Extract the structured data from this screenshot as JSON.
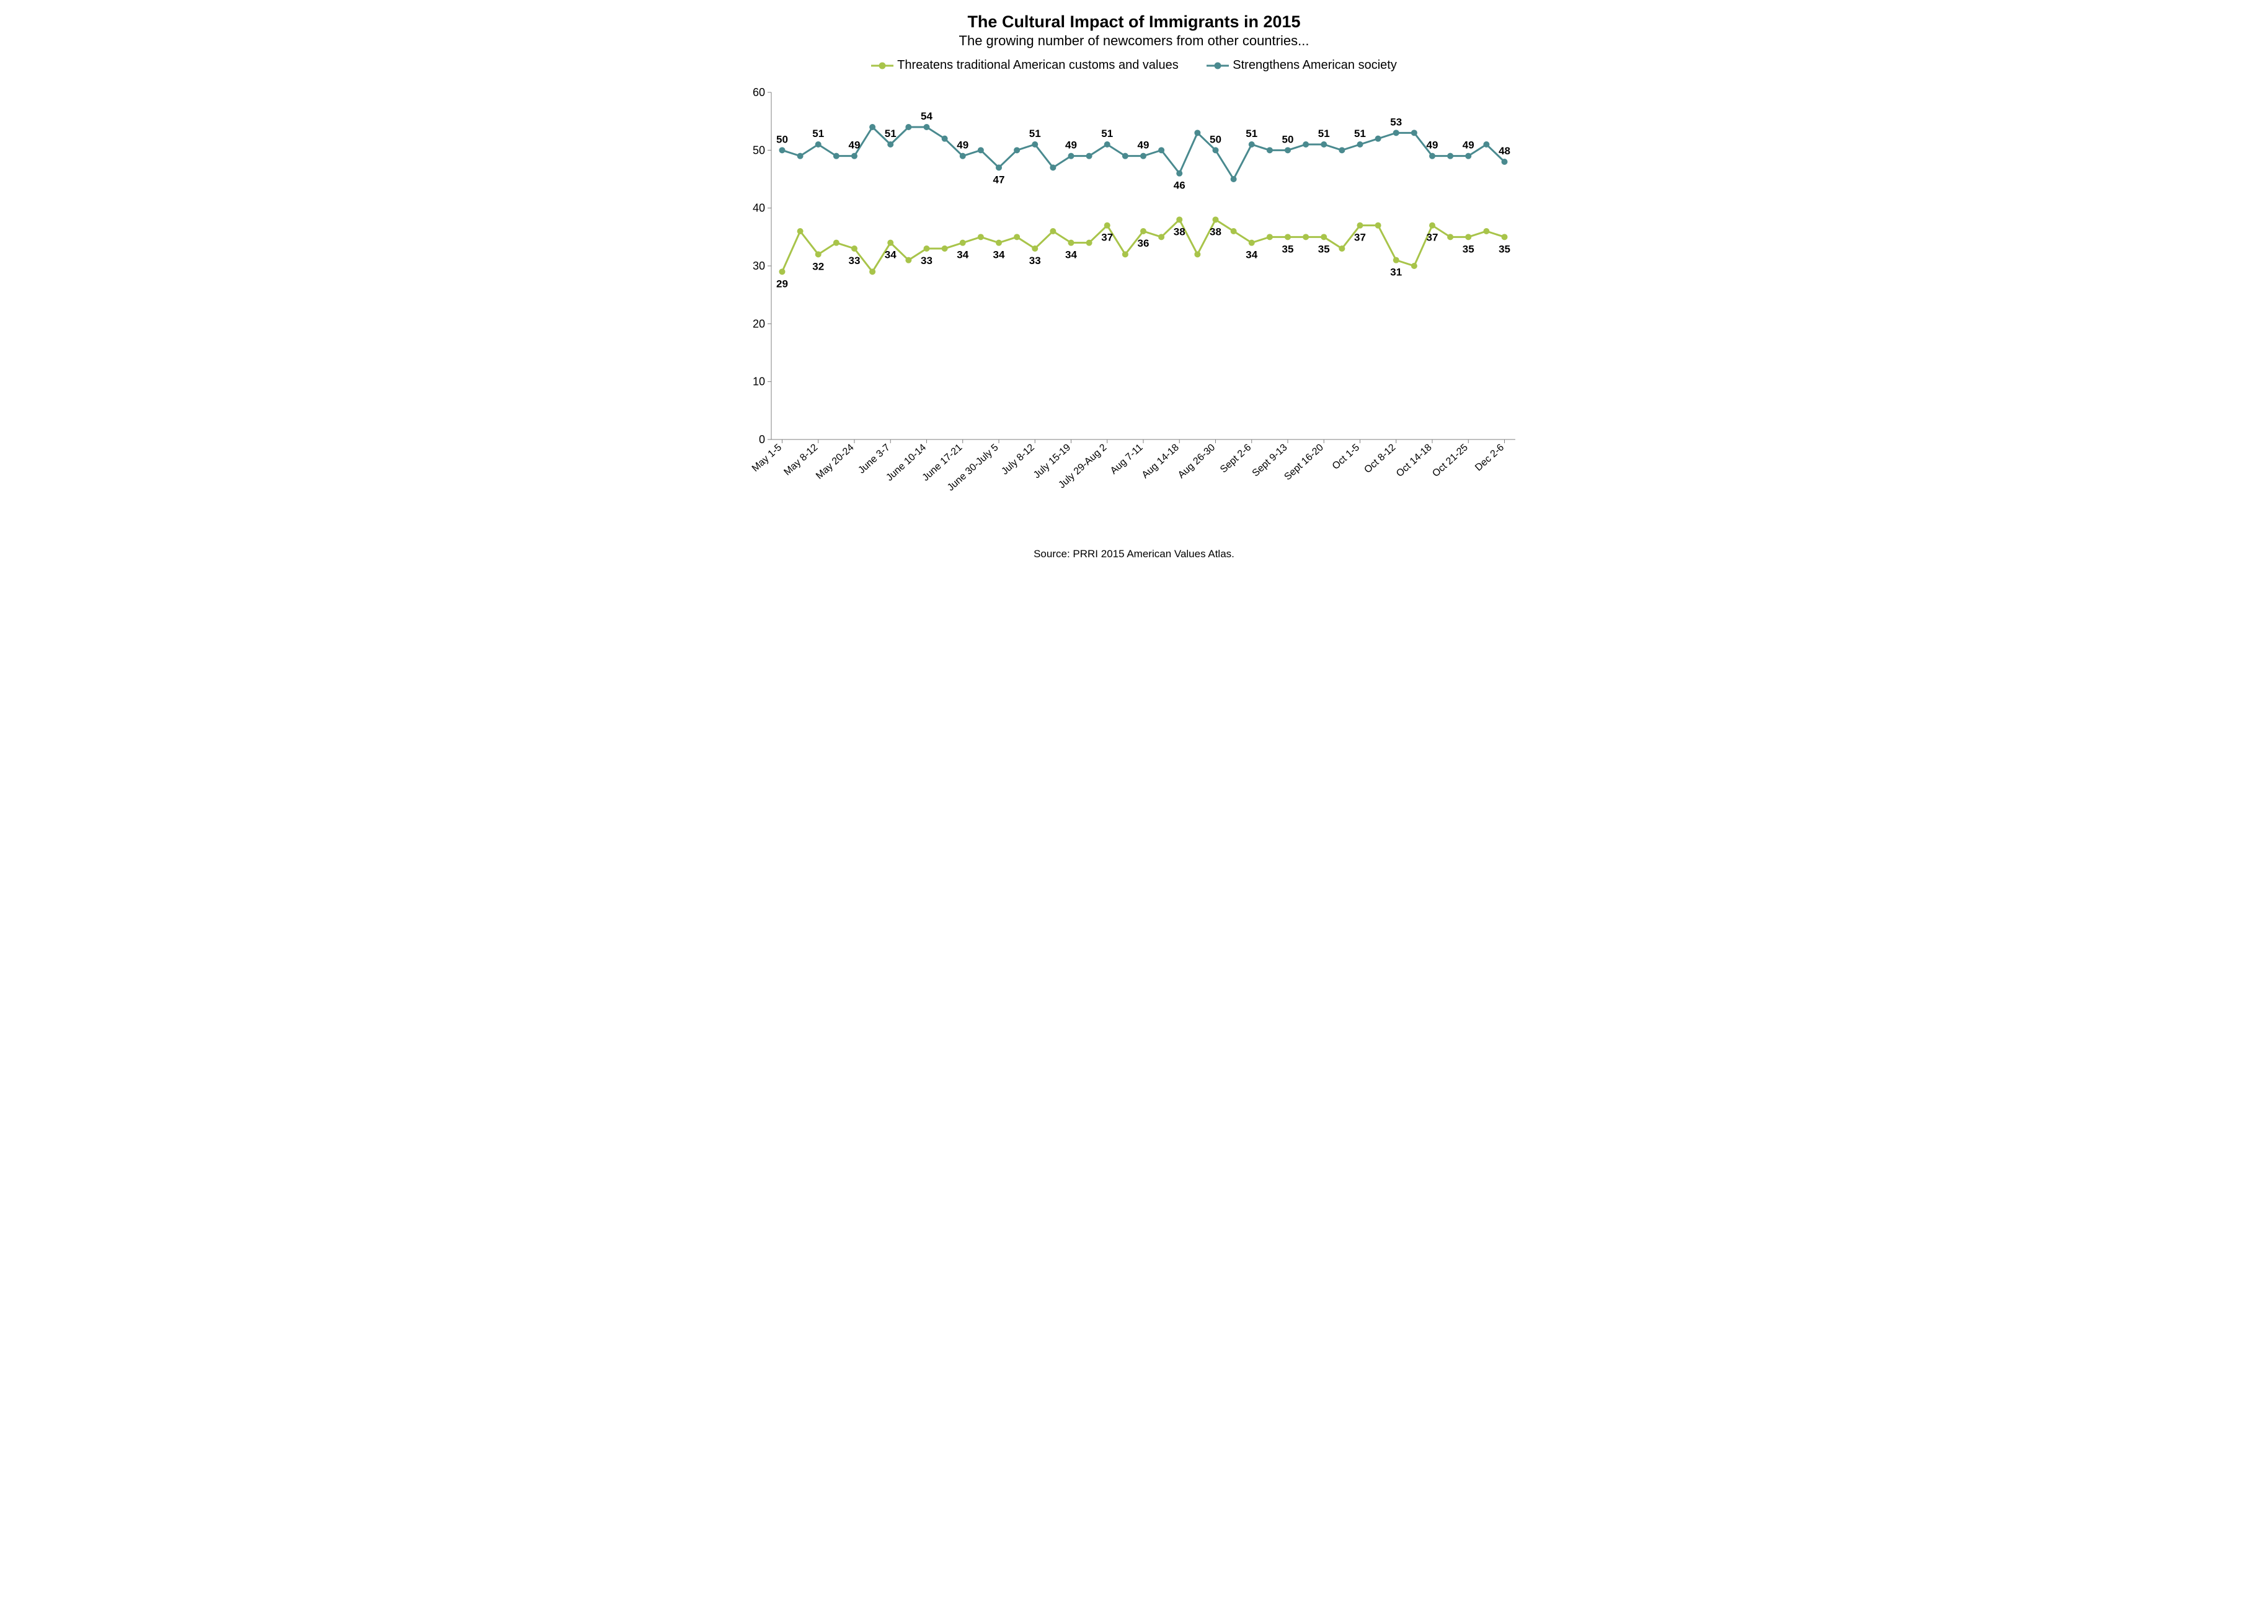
{
  "chart": {
    "type": "line",
    "title": "The Cultural Impact of Immigrants in 2015",
    "subtitle": "The growing number of newcomers from other countries...",
    "source": "Source: PRRI 2015 American Values Atlas.",
    "background_color": "#ffffff",
    "title_fontsize": 27,
    "subtitle_fontsize": 22,
    "legend_fontsize": 20,
    "label_fontsize": 17,
    "axis_fontsize": 18,
    "ylim": [
      0,
      60
    ],
    "ytick_step": 10,
    "line_width": 3,
    "marker_radius": 5,
    "categories": [
      "May 1-5",
      "",
      "May 8-12",
      "",
      "May 20-24",
      "",
      "June 3-7",
      "",
      "June 10-14",
      "",
      "June 17-21",
      "",
      "June 30-July 5",
      "",
      "July 8-12",
      "",
      "July 15-19",
      "",
      "July 29-Aug 2",
      "",
      "Aug 7-11",
      "",
      "Aug 14-18",
      "",
      "Aug 26-30",
      "",
      "Sept 2-6",
      "",
      "Sept 9-13",
      "",
      "Sept 16-20",
      "",
      "Oct 1-5",
      "",
      "Oct 8-12",
      "",
      "Oct 14-18",
      "",
      "Oct 21-25",
      "",
      "Dec 2-6"
    ],
    "x_tick_every": 2,
    "series": [
      {
        "name": "Threatens traditional American customs and values",
        "color": "#a8c44a",
        "values": [
          29,
          36,
          32,
          34,
          33,
          29,
          34,
          31,
          33,
          33,
          34,
          35,
          34,
          35,
          33,
          36,
          34,
          34,
          37,
          32,
          36,
          35,
          38,
          32,
          38,
          36,
          34,
          35,
          35,
          35,
          35,
          33,
          37,
          37,
          31,
          30,
          37,
          35,
          35,
          36,
          35
        ],
        "data_labels": [
          {
            "i": 0,
            "v": "29",
            "pos": "below"
          },
          {
            "i": 2,
            "v": "32",
            "pos": "below"
          },
          {
            "i": 4,
            "v": "33",
            "pos": "below"
          },
          {
            "i": 6,
            "v": "34",
            "pos": "below"
          },
          {
            "i": 8,
            "v": "33",
            "pos": "below"
          },
          {
            "i": 10,
            "v": "34",
            "pos": "below"
          },
          {
            "i": 12,
            "v": "34",
            "pos": "below"
          },
          {
            "i": 14,
            "v": "33",
            "pos": "below"
          },
          {
            "i": 16,
            "v": "34",
            "pos": "below"
          },
          {
            "i": 18,
            "v": "37",
            "pos": "below"
          },
          {
            "i": 20,
            "v": "36",
            "pos": "below"
          },
          {
            "i": 22,
            "v": "38",
            "pos": "below"
          },
          {
            "i": 24,
            "v": "38",
            "pos": "below"
          },
          {
            "i": 26,
            "v": "34",
            "pos": "below"
          },
          {
            "i": 28,
            "v": "35",
            "pos": "below"
          },
          {
            "i": 30,
            "v": "35",
            "pos": "below"
          },
          {
            "i": 32,
            "v": "37",
            "pos": "below"
          },
          {
            "i": 34,
            "v": "31",
            "pos": "below"
          },
          {
            "i": 36,
            "v": "37",
            "pos": "below"
          },
          {
            "i": 38,
            "v": "35",
            "pos": "below"
          },
          {
            "i": 40,
            "v": "35",
            "pos": "below"
          }
        ]
      },
      {
        "name": "Strengthens American society",
        "color": "#4a8a8f",
        "values": [
          50,
          49,
          51,
          49,
          49,
          54,
          51,
          54,
          54,
          52,
          49,
          50,
          47,
          50,
          51,
          47,
          49,
          49,
          51,
          49,
          49,
          50,
          46,
          53,
          50,
          45,
          51,
          50,
          50,
          51,
          51,
          50,
          51,
          52,
          53,
          53,
          49,
          49,
          49,
          51,
          48
        ],
        "data_labels": [
          {
            "i": 0,
            "v": "50",
            "pos": "above"
          },
          {
            "i": 2,
            "v": "51",
            "pos": "above"
          },
          {
            "i": 4,
            "v": "49",
            "pos": "above"
          },
          {
            "i": 6,
            "v": "51",
            "pos": "above"
          },
          {
            "i": 8,
            "v": "54",
            "pos": "above"
          },
          {
            "i": 10,
            "v": "49",
            "pos": "above"
          },
          {
            "i": 12,
            "v": "47",
            "pos": "below"
          },
          {
            "i": 14,
            "v": "51",
            "pos": "above"
          },
          {
            "i": 16,
            "v": "49",
            "pos": "above"
          },
          {
            "i": 18,
            "v": "51",
            "pos": "above"
          },
          {
            "i": 20,
            "v": "49",
            "pos": "above"
          },
          {
            "i": 22,
            "v": "46",
            "pos": "below"
          },
          {
            "i": 24,
            "v": "50",
            "pos": "above"
          },
          {
            "i": 26,
            "v": "51",
            "pos": "above"
          },
          {
            "i": 28,
            "v": "50",
            "pos": "above"
          },
          {
            "i": 30,
            "v": "51",
            "pos": "above"
          },
          {
            "i": 32,
            "v": "51",
            "pos": "above"
          },
          {
            "i": 34,
            "v": "53",
            "pos": "above"
          },
          {
            "i": 36,
            "v": "49",
            "pos": "above"
          },
          {
            "i": 38,
            "v": "49",
            "pos": "above"
          },
          {
            "i": 40,
            "v": "48",
            "pos": "above"
          }
        ]
      }
    ]
  }
}
